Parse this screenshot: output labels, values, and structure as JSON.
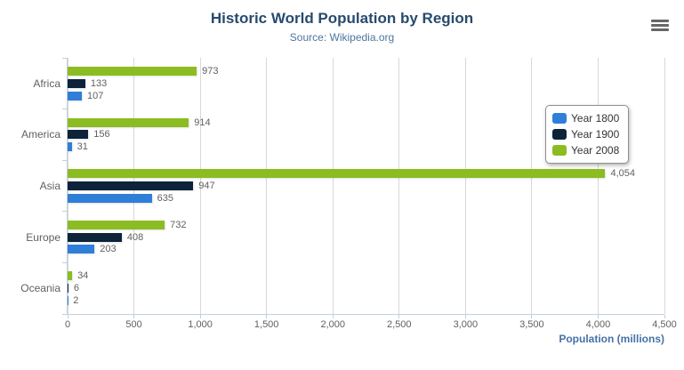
{
  "chart_data": {
    "type": "bar",
    "orientation": "horizontal",
    "title": "Historic World Population by Region",
    "subtitle": "Source: Wikipedia.org",
    "categories": [
      "Africa",
      "America",
      "Asia",
      "Europe",
      "Oceania"
    ],
    "series": [
      {
        "name": "Year 1800",
        "color": "#2f7ed8",
        "values": [
          107,
          31,
          635,
          203,
          2
        ]
      },
      {
        "name": "Year 1900",
        "color": "#0d233a",
        "values": [
          133,
          156,
          947,
          408,
          6
        ]
      },
      {
        "name": "Year 2008",
        "color": "#8bbc21",
        "values": [
          973,
          914,
          4054,
          732,
          34
        ]
      }
    ],
    "bar_order_top_to_bottom": [
      "Year 2008",
      "Year 1900",
      "Year 1800"
    ],
    "data_labels": {
      "Africa": {
        "Year 2008": "973",
        "Year 1900": "133",
        "Year 1800": "107"
      },
      "America": {
        "Year 2008": "914",
        "Year 1900": "156",
        "Year 1800": "31"
      },
      "Asia": {
        "Year 2008": "4,054",
        "Year 1900": "947",
        "Year 1800": "635"
      },
      "Europe": {
        "Year 2008": "732",
        "Year 1900": "408",
        "Year 1800": "203"
      },
      "Oceania": {
        "Year 2008": "34",
        "Year 1900": "6",
        "Year 1800": "2"
      }
    },
    "xlabel": "Population (millions)",
    "xlim": [
      0,
      4500
    ],
    "xticks": [
      0,
      500,
      1000,
      1500,
      2000,
      2500,
      3000,
      3500,
      4000,
      4500
    ],
    "xtick_labels": [
      "0",
      "500",
      "1,000",
      "1,500",
      "2,000",
      "2,500",
      "3,000",
      "3,500",
      "4,000",
      "4,500"
    ],
    "legend": {
      "position": "right",
      "items": [
        "Year 1800",
        "Year 1900",
        "Year 2008"
      ]
    },
    "grid": true
  },
  "colors": {
    "title": "#274b6d",
    "subtitle": "#4d759e",
    "axis_labels": "#606060",
    "data_labels": "#606060",
    "axis_title": "#4572a7",
    "grid_line": "#d8d8d8",
    "axis_line": "#c0d0e0",
    "legend_border": "#909090",
    "legend_text": "#333333",
    "menu_icon": "#666666"
  },
  "icons": {
    "context_menu": "hamburger-icon"
  }
}
